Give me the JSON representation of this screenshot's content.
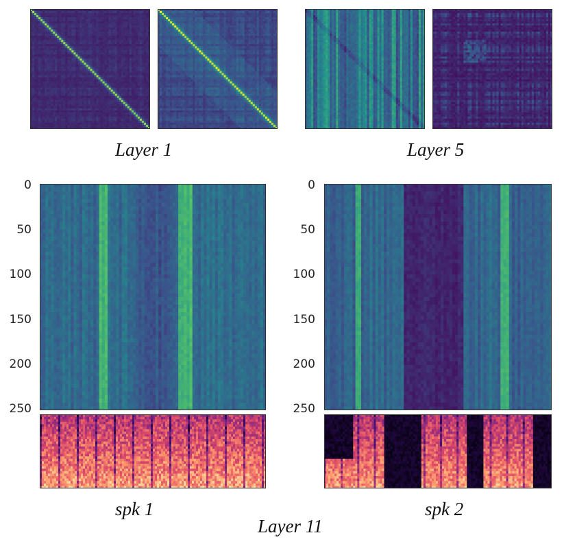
{
  "captions": {
    "layer1": "Layer 1",
    "layer5": "Layer 5",
    "layer11": "Layer 11",
    "spk1": "spk 1",
    "spk2": "spk 2"
  },
  "y_ticks": [
    "0",
    "50",
    "100",
    "150",
    "200",
    "250"
  ],
  "colormaps": {
    "viridis": [
      "#440154",
      "#3b528b",
      "#21908d",
      "#5dc963",
      "#fde725"
    ],
    "magma": [
      "#000004",
      "#3b0f70",
      "#8c2981",
      "#de4968",
      "#fe9f6d",
      "#fcfdbf"
    ]
  }
}
